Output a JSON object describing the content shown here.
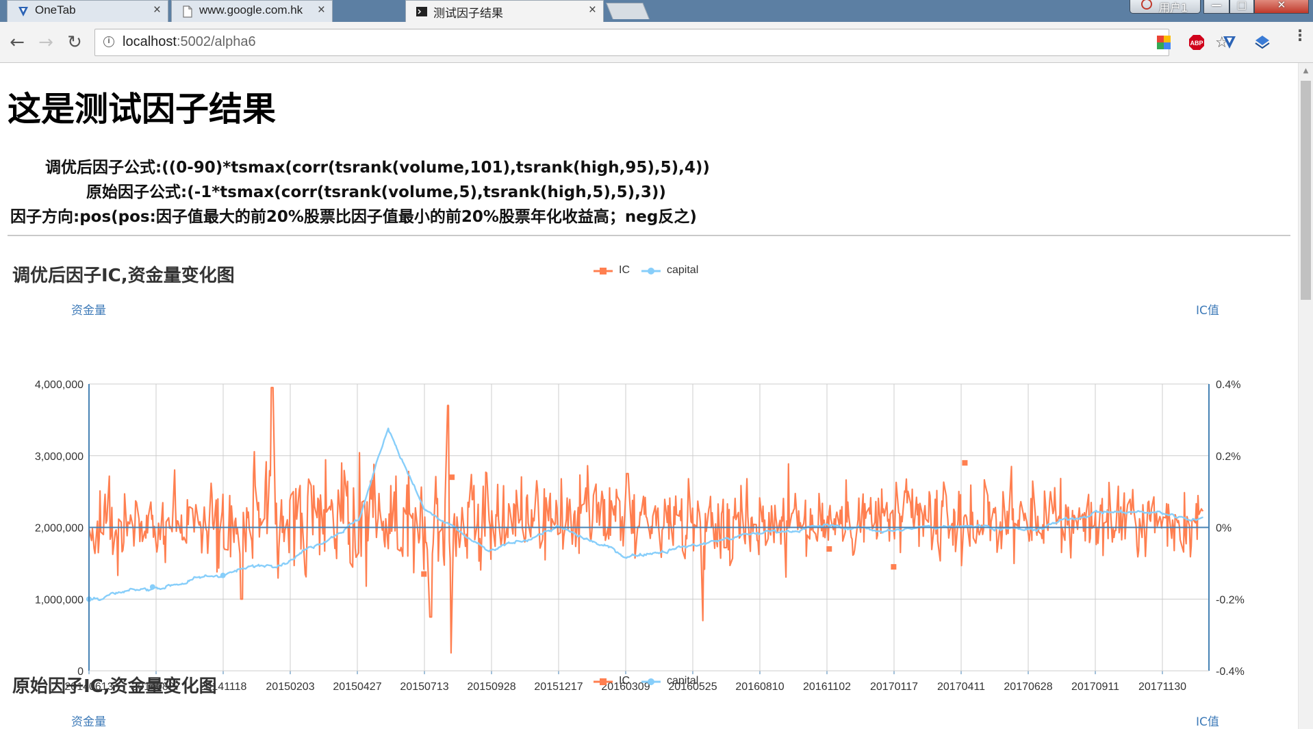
{
  "browser": {
    "tabs": [
      {
        "title": "OneTab",
        "icon": "onetab-icon",
        "close": "×"
      },
      {
        "title": "www.google.com.hk",
        "icon": "page-icon",
        "close": "×"
      },
      {
        "title": "测试因子结果",
        "icon": "terminal-icon",
        "close": "×"
      }
    ],
    "user_label": "用户1",
    "window_buttons": {
      "minimize": "—",
      "maximize": "□",
      "close": "✕"
    },
    "nav": {
      "back": "←",
      "forward": "→",
      "reload": "↻"
    },
    "url_host": "localhost",
    "url_rest": ":5002/alpha6",
    "info_icon": "i",
    "star_icon": "☆",
    "menu_icon": "⋮",
    "extensions": [
      "chrome-store-icon",
      "adblock-plus-icon",
      "onetab-ext-icon",
      "cloud-ext-icon"
    ],
    "adblock_label": "ABP"
  },
  "page": {
    "heading": "这是测试因子结果",
    "formulas": [
      "调优后因子公式:((0-90)*tsmax(corr(tsrank(volume,101),tsrank(high,95),5),4))",
      "原始因子公式:(-1*tsmax(corr(tsrank(volume,5),tsrank(high,5),5),3))",
      "因子方向:pos(pos:因子值最大的前20%股票比因子值最小的前20%股票年化收益高；neg反之)"
    ]
  },
  "charts": [
    {
      "title": "调优后因子IC,资金量变化图",
      "legend": [
        "IC",
        "capital"
      ],
      "y_left_name": "资金量",
      "y_right_name": "IC值"
    },
    {
      "title": "原始因子IC,资金量变化图",
      "legend": [
        "IC",
        "capital"
      ],
      "y_left_name": "资金量",
      "y_right_name": "IC值"
    }
  ],
  "colors": {
    "ic": "#ff7f50",
    "capital": "#87cefa",
    "axis": "#4682b4",
    "grid": "#cccccc",
    "tab_strip": "#5c7fa3"
  },
  "chart_data": [
    {
      "type": "line",
      "title": "调优后因子IC,资金量变化图",
      "x_tick_labels": [
        "20140613",
        "20140827",
        "20141118",
        "20150203",
        "20150427",
        "20150713",
        "20150928",
        "20151217",
        "20160309",
        "20160525",
        "20160810",
        "20161102",
        "20170117",
        "20170411",
        "20170628",
        "20170911",
        "20171130"
      ],
      "y_left": {
        "name": "资金量",
        "min": 0,
        "max": 4000000,
        "ticks": [
          "0",
          "1,000,000",
          "2,000,000",
          "3,000,000",
          "4,000,000"
        ]
      },
      "y_right": {
        "name": "IC值",
        "min": -0.004,
        "max": 0.004,
        "ticks": [
          "-0.4%",
          "-0.2%",
          "0%",
          "0.2%",
          "0.4%"
        ]
      },
      "legend": [
        "IC",
        "capital"
      ],
      "legend_position": "top-center",
      "grid": true,
      "series": [
        {
          "name": "capital",
          "axis": "left",
          "keypoints": [
            {
              "x": "20140613",
              "y": 1000000
            },
            {
              "x": "20140827",
              "y": 1150000
            },
            {
              "x": "20141118",
              "y": 1350000
            },
            {
              "x": "20150203",
              "y": 1550000
            },
            {
              "x": "20150427",
              "y": 2100000
            },
            {
              "x": "20150601",
              "y": 3400000
            },
            {
              "x": "20150713",
              "y": 2250000
            },
            {
              "x": "20150928",
              "y": 1650000
            },
            {
              "x": "20151217",
              "y": 2000000
            },
            {
              "x": "20160309",
              "y": 1600000
            },
            {
              "x": "20160525",
              "y": 1750000
            },
            {
              "x": "20160810",
              "y": 1920000
            },
            {
              "x": "20161102",
              "y": 2020000
            },
            {
              "x": "20170117",
              "y": 1950000
            },
            {
              "x": "20170411",
              "y": 2050000
            },
            {
              "x": "20170628",
              "y": 1950000
            },
            {
              "x": "20170911",
              "y": 2220000
            },
            {
              "x": "20171130",
              "y": 2200000
            },
            {
              "x": "20171231",
              "y": 2130000
            }
          ]
        },
        {
          "name": "IC",
          "axis": "right",
          "approx_range": [
            -0.0035,
            0.0039
          ],
          "approx_mean": 0.0002,
          "notable_points": [
            {
              "x": "20150115",
              "y": 0.0039
            },
            {
              "x": "20150810",
              "y": 0.0034
            },
            {
              "x": "20150815",
              "y": -0.0035
            },
            {
              "x": "20150721",
              "y": -0.0025
            },
            {
              "x": "20160605",
              "y": -0.0026
            },
            {
              "x": "20141210",
              "y": -0.002
            },
            {
              "x": "20160309",
              "y": 0.0015
            }
          ]
        }
      ]
    },
    {
      "type": "line",
      "title": "原始因子IC,资金量变化图",
      "y_left": {
        "name": "资金量"
      },
      "y_right": {
        "name": "IC值"
      },
      "legend": [
        "IC",
        "capital"
      ],
      "legend_position": "top-center"
    }
  ]
}
